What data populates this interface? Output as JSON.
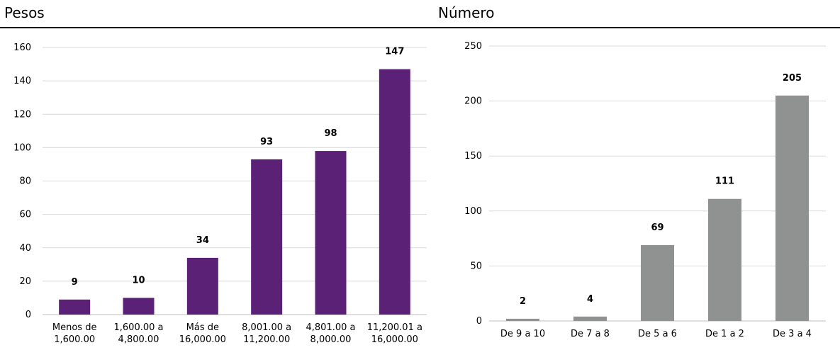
{
  "charts": {
    "left_title": "Pesos",
    "right_title": "Número"
  },
  "chart_data": [
    {
      "type": "bar",
      "title": "Pesos",
      "categories": [
        [
          "Menos de",
          "1,600.00"
        ],
        [
          "1,600.00 a",
          "4,800.00"
        ],
        [
          "Más de",
          "16,000.00"
        ],
        [
          "8,001.00 a",
          "11,200.00"
        ],
        [
          "4,801.00 a",
          "8,000.00"
        ],
        [
          "11,200.01 a",
          "16,000.00"
        ]
      ],
      "values": [
        9,
        10,
        34,
        93,
        98,
        147
      ],
      "ylim": [
        0,
        160
      ],
      "yticks": [
        0,
        20,
        40,
        60,
        80,
        100,
        120,
        140,
        160
      ],
      "grid": true,
      "color": "#5a2176"
    },
    {
      "type": "bar",
      "title": "Número",
      "categories": [
        [
          "De 9 a 10"
        ],
        [
          "De 7 a 8"
        ],
        [
          "De 5 a 6"
        ],
        [
          "De 1 a 2"
        ],
        [
          "De 3 a 4"
        ]
      ],
      "values": [
        2,
        4,
        69,
        111,
        205
      ],
      "ylim": [
        0,
        250
      ],
      "yticks": [
        0,
        50,
        100,
        150,
        200,
        250
      ],
      "grid": true,
      "color": "#8f9290"
    }
  ]
}
